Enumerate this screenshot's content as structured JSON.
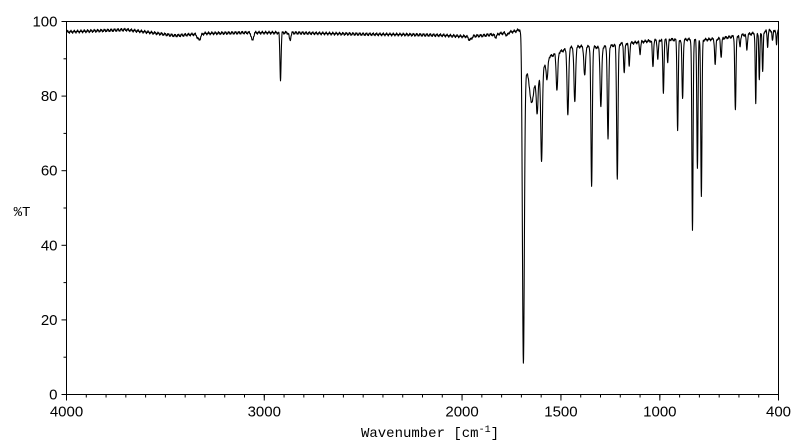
{
  "chart_data": {
    "type": "line",
    "title": "",
    "xlabel": "Wavenumber [cm",
    "xlabel_sup": "-1",
    "xlabel_close": "]",
    "ylabel": "%T",
    "xlim": [
      4000,
      400
    ],
    "ylim": [
      0,
      100
    ],
    "x_ticks": [
      4000,
      3000,
      2000,
      1500,
      1000,
      400
    ],
    "x_tick_labels": [
      "4000",
      "3000",
      "2000",
      "1500",
      "1000",
      "400"
    ],
    "y_ticks": [
      0,
      20,
      40,
      60,
      80,
      100
    ],
    "y_tick_labels": [
      "0",
      "20",
      "40",
      "60",
      "80",
      "100"
    ],
    "grid": false,
    "line_color": "#000000",
    "series": [
      {
        "baseline": [
          [
            4000,
            97.2
          ],
          [
            3800,
            97.6
          ],
          [
            3700,
            97.8
          ],
          [
            3600,
            97.2
          ],
          [
            3450,
            96.2
          ],
          [
            3300,
            96.8
          ],
          [
            3100,
            97.0
          ],
          [
            2900,
            97.0
          ],
          [
            2700,
            96.8
          ],
          [
            2500,
            96.6
          ],
          [
            2300,
            96.5
          ],
          [
            2100,
            96.3
          ],
          [
            2000,
            96.0
          ],
          [
            1900,
            96.2
          ],
          [
            1800,
            96.8
          ],
          [
            1730,
            97.4
          ],
          [
            1700,
            98.0
          ],
          [
            1680,
            87.0
          ],
          [
            1640,
            82.0
          ],
          [
            1600,
            86.0
          ],
          [
            1560,
            90.5
          ],
          [
            1500,
            92.0
          ],
          [
            1450,
            93.0
          ],
          [
            1400,
            93.3
          ],
          [
            1350,
            93.2
          ],
          [
            1300,
            93.0
          ],
          [
            1250,
            93.4
          ],
          [
            1200,
            94.0
          ],
          [
            1150,
            94.2
          ],
          [
            1100,
            94.5
          ],
          [
            1050,
            94.8
          ],
          [
            1000,
            95.0
          ],
          [
            950,
            95.2
          ],
          [
            900,
            95.0
          ],
          [
            850,
            95.2
          ],
          [
            800,
            95.0
          ],
          [
            750,
            95.2
          ],
          [
            700,
            95.4
          ],
          [
            650,
            95.8
          ],
          [
            600,
            96.2
          ],
          [
            550,
            96.6
          ],
          [
            500,
            97.0
          ],
          [
            450,
            97.5
          ],
          [
            400,
            97.8
          ]
        ],
        "peaks": [
          [
            3330,
            1.6,
            8
          ],
          [
            3060,
            2.2,
            5
          ],
          [
            2918,
            12.5,
            3
          ],
          [
            2870,
            2.0,
            4
          ],
          [
            1960,
            1.0,
            8
          ],
          [
            1830,
            0.8,
            6
          ],
          [
            1773,
            0.8,
            5
          ],
          [
            1690,
            84.0,
            5
          ],
          [
            1650,
            5.0,
            7
          ],
          [
            1620,
            9.0,
            4
          ],
          [
            1598,
            24.0,
            4
          ],
          [
            1570,
            5.0,
            4
          ],
          [
            1520,
            10.0,
            4
          ],
          [
            1465,
            18.0,
            4
          ],
          [
            1430,
            15.0,
            4
          ],
          [
            1380,
            8.0,
            4
          ],
          [
            1345,
            37.5,
            3.5
          ],
          [
            1298,
            16.0,
            4
          ],
          [
            1262,
            25.0,
            3.5
          ],
          [
            1215,
            36.0,
            3.5
          ],
          [
            1180,
            8.0,
            3
          ],
          [
            1155,
            6.0,
            3
          ],
          [
            1100,
            3.0,
            3
          ],
          [
            1035,
            7.0,
            3
          ],
          [
            1010,
            5.0,
            3
          ],
          [
            982,
            14.0,
            3
          ],
          [
            960,
            6.0,
            3
          ],
          [
            910,
            24.0,
            3
          ],
          [
            885,
            16.0,
            3
          ],
          [
            835,
            51.5,
            3
          ],
          [
            810,
            34.0,
            3
          ],
          [
            790,
            42.0,
            3
          ],
          [
            720,
            7.0,
            3
          ],
          [
            690,
            5.0,
            3
          ],
          [
            618,
            20.0,
            3
          ],
          [
            595,
            3.0,
            3
          ],
          [
            560,
            4.0,
            3
          ],
          [
            515,
            19.0,
            2.5
          ],
          [
            497,
            13.0,
            2.5
          ],
          [
            480,
            11.0,
            2.5
          ],
          [
            455,
            4.0,
            2.5
          ],
          [
            430,
            3.0,
            2.5
          ],
          [
            410,
            4.0,
            2.5
          ]
        ]
      }
    ]
  }
}
